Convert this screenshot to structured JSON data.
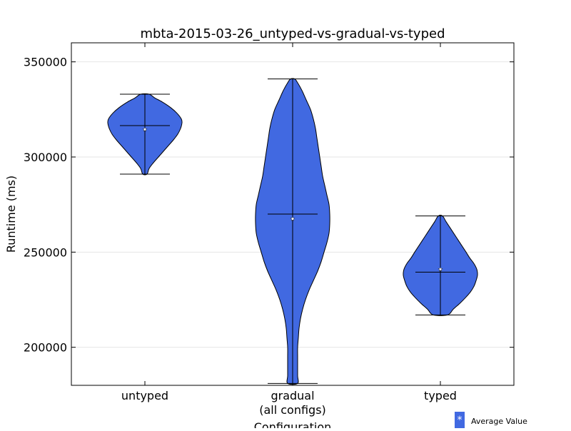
{
  "colors": {
    "violin_fill": "#4169E1",
    "violin_edge": "#000000",
    "grid": "#e6e6e6",
    "mean_marker": "#ffffff"
  },
  "chart_data": {
    "type": "violin",
    "title": "mbta-2015-03-26_untyped-vs-gradual-vs-typed",
    "xlabel": "Configuration",
    "ylabel": "Runtime (ms)",
    "categories": [
      "untyped",
      "gradual\n(all configs)",
      "typed"
    ],
    "ylim": [
      180000,
      360000
    ],
    "yticks": [
      200000,
      250000,
      300000,
      350000
    ],
    "grid": "horizontal",
    "legend": {
      "position": "bottom-right",
      "entries": [
        {
          "label": "Average Value",
          "marker": "*"
        }
      ]
    },
    "violins": [
      {
        "category": "untyped",
        "min": 291000,
        "max": 333000,
        "median": 316500,
        "mean": 314500,
        "density": [
          [
            291000,
            3
          ],
          [
            294000,
            6
          ],
          [
            297000,
            12
          ],
          [
            300000,
            19
          ],
          [
            303000,
            26
          ],
          [
            306000,
            33
          ],
          [
            309000,
            40
          ],
          [
            312000,
            46
          ],
          [
            315000,
            50
          ],
          [
            318000,
            52
          ],
          [
            320000,
            51
          ],
          [
            323000,
            45
          ],
          [
            326000,
            36
          ],
          [
            329000,
            24
          ],
          [
            331000,
            14
          ],
          [
            333000,
            6
          ]
        ]
      },
      {
        "category": "gradual (all configs)",
        "min": 181000,
        "max": 341000,
        "median": 270000,
        "mean": 267500,
        "density": [
          [
            181000,
            7
          ],
          [
            185000,
            7
          ],
          [
            190000,
            7
          ],
          [
            195000,
            7
          ],
          [
            200000,
            7
          ],
          [
            205000,
            8
          ],
          [
            210000,
            9
          ],
          [
            215000,
            11
          ],
          [
            220000,
            14
          ],
          [
            225000,
            18
          ],
          [
            230000,
            23
          ],
          [
            235000,
            29
          ],
          [
            240000,
            35
          ],
          [
            245000,
            40
          ],
          [
            250000,
            44
          ],
          [
            255000,
            48
          ],
          [
            260000,
            51
          ],
          [
            265000,
            52
          ],
          [
            270000,
            52
          ],
          [
            275000,
            51
          ],
          [
            280000,
            48
          ],
          [
            285000,
            45
          ],
          [
            290000,
            42
          ],
          [
            295000,
            40
          ],
          [
            300000,
            38
          ],
          [
            305000,
            36
          ],
          [
            310000,
            34
          ],
          [
            315000,
            32
          ],
          [
            320000,
            29
          ],
          [
            325000,
            25
          ],
          [
            330000,
            19
          ],
          [
            335000,
            13
          ],
          [
            339000,
            7
          ],
          [
            341000,
            3
          ]
        ]
      },
      {
        "category": "typed",
        "min": 217000,
        "max": 269000,
        "median": 239500,
        "mean": 241000,
        "density": [
          [
            217000,
            10
          ],
          [
            220000,
            18
          ],
          [
            223000,
            27
          ],
          [
            226000,
            35
          ],
          [
            229000,
            42
          ],
          [
            232000,
            47
          ],
          [
            235000,
            50
          ],
          [
            238000,
            52
          ],
          [
            241000,
            51
          ],
          [
            244000,
            47
          ],
          [
            247000,
            41
          ],
          [
            250000,
            36
          ],
          [
            254000,
            29
          ],
          [
            258000,
            22
          ],
          [
            262000,
            15
          ],
          [
            266000,
            8
          ],
          [
            269000,
            3
          ]
        ]
      }
    ]
  }
}
